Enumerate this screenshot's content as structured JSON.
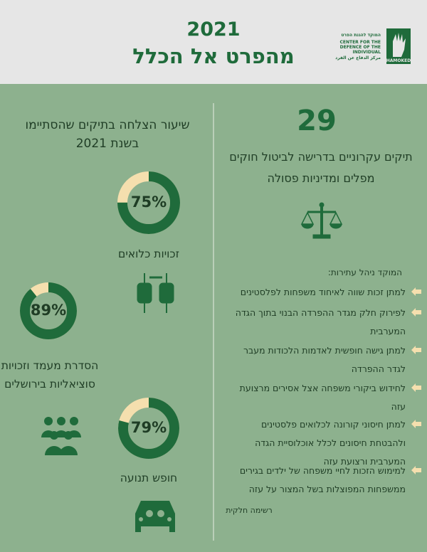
{
  "header": {
    "year": "2021",
    "title": "מהפרט אל הכלל",
    "logo": {
      "line1": "המוקד להגנת הפרט",
      "line2": "CENTER FOR THE DEFENCE OF THE INDIVIDUAL",
      "line3": "مركز الدفاع عن الفرد",
      "name": "HAMOKED"
    }
  },
  "left": {
    "heading": "שיעור הצלחה בתיקים שהסתיימו בשנת 2021",
    "donuts": [
      {
        "label": "זכויות כלואים",
        "value": 75,
        "value_label": "75%"
      },
      {
        "label": "הסדרת מעמד וזכויות סוציאליות בירושלים",
        "value": 89,
        "value_label": "89%"
      },
      {
        "label": "חופש תנועה",
        "value": 79,
        "value_label": "79%"
      }
    ]
  },
  "right": {
    "count": 29,
    "description": "תיקים עקרוניים בדרישה לביטול חוקים מפלים ומדיניות פסולה",
    "intro": "המוקד ניהל עתירות:",
    "items": [
      "למתן זכות שווה לאיחוד משפחות לפלסטינים",
      "לפירוק חלק מגדר ההפרדה הבנוי בתוך הגדה המערבית",
      "למתן גישה חופשית לאדמות הלכודות מעבר לגדר ההפרדה",
      "לחידוש ביקורי משפחה אצל אסירים מרצועת עזה",
      "למתן חיסוני קורונה לכלואים פלסטינים ולהבטחת חיסונים לכלל אוכלוסיית הגדה המערבית ורצועת עזה",
      "למימוש הזכות לחיי משפחה של ילדים בגירים ממשפחות המפוצלות בשל המצור על עזה"
    ],
    "footnote": "רשימה חלקית"
  }
}
